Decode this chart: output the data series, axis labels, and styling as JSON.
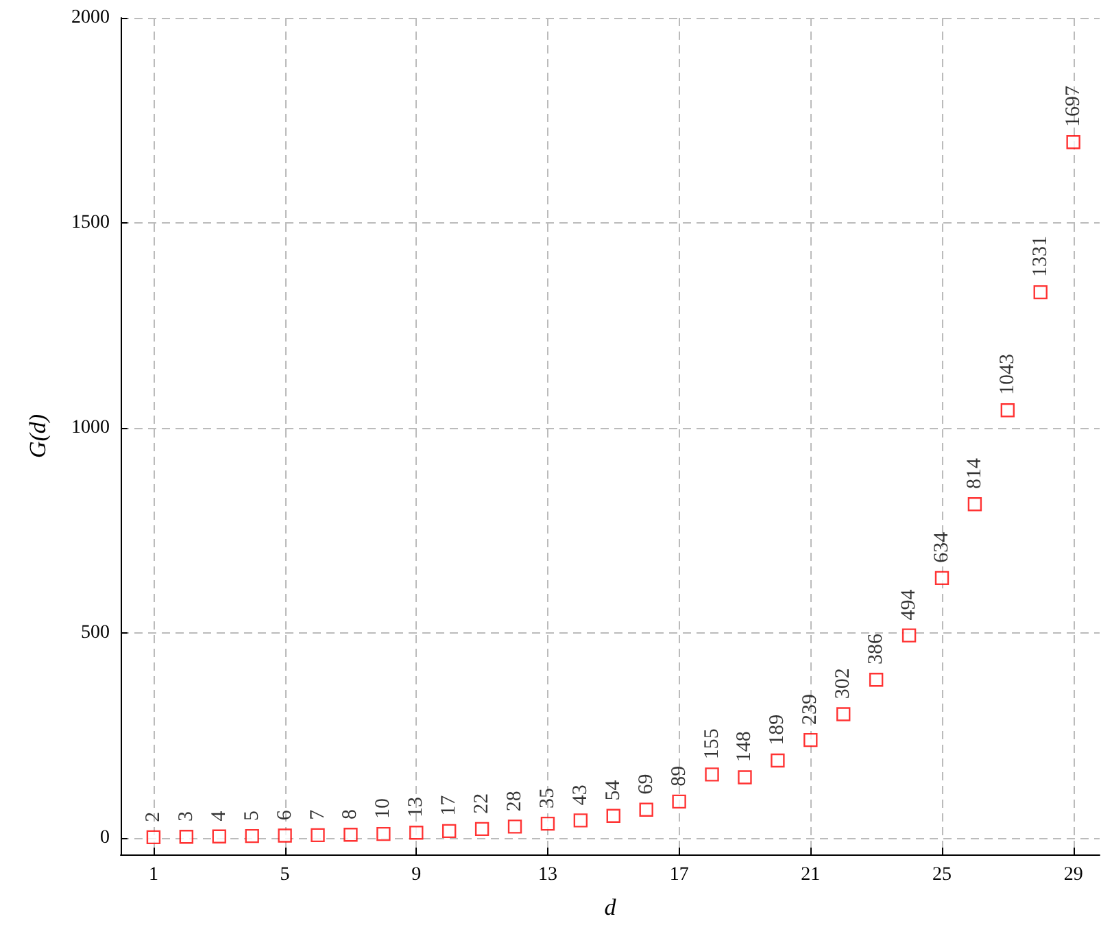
{
  "chart_data": {
    "type": "scatter",
    "xlabel": "d",
    "ylabel": "G(d)",
    "x": [
      1,
      2,
      3,
      4,
      5,
      6,
      7,
      8,
      9,
      10,
      11,
      12,
      13,
      14,
      15,
      16,
      17,
      18,
      19,
      20,
      21,
      22,
      23,
      24,
      25,
      26,
      27,
      28,
      29
    ],
    "series": [
      {
        "color": "#ff0000",
        "values": [
          2,
          3,
          4,
          5,
          6,
          7,
          8,
          10,
          13,
          17,
          22,
          28,
          35,
          43,
          54,
          69,
          89,
          155,
          148,
          189,
          239,
          302,
          386,
          494,
          634,
          814,
          1043,
          1331,
          1697
        ]
      }
    ],
    "data_labels": true,
    "marker": "square",
    "grid": true,
    "xlim": [
      0,
      29.8
    ],
    "xticks": [
      1,
      5,
      9,
      13,
      17,
      21,
      25,
      29
    ],
    "ylim": [
      -40,
      2000
    ],
    "yticks": [
      0,
      500,
      1000,
      1500,
      2000
    ]
  }
}
